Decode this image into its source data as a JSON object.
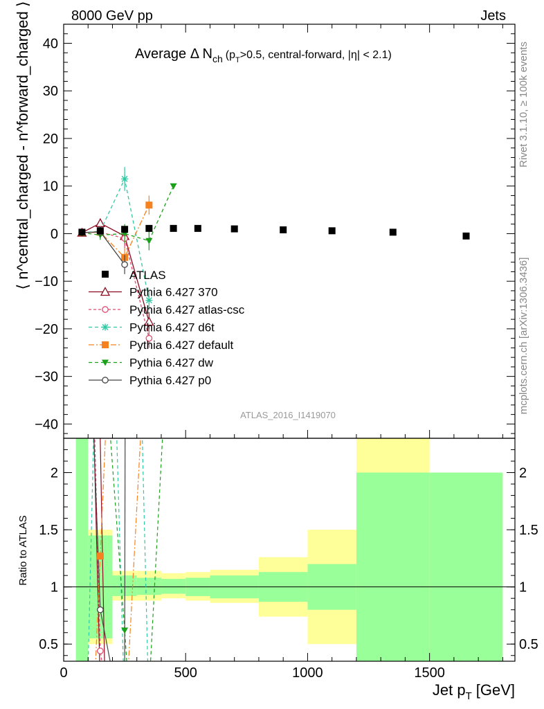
{
  "header": {
    "left": "8000 GeV pp",
    "right": "Jets"
  },
  "side_labels": {
    "rivet": "Rivet 3.1.10, ≥ 100k events",
    "mcplots": "mcplots.cern.ch [arXiv:1306.3436]"
  },
  "chart_data": {
    "type": "scatter",
    "title_main": "Average Δ N",
    "title_sub": "ch",
    "title_cut": "(p",
    "title_cut_sub": "T",
    "title_rest": ">0.5, central-forward, |η| < 2.1)",
    "analysis_id": "ATLAS_2016_I1419070",
    "xlabel": "Jet p",
    "xlabel_sub": "T",
    "xlabel_unit": "[GeV]",
    "ylabel_text": "⟨ n^central_charged - n^forward_charged ⟩",
    "ratio_ylabel": "Ratio to ATLAS",
    "xlim": [
      0,
      1850
    ],
    "ylim": [
      -43,
      44
    ],
    "ratio_ylim": [
      0.35,
      2.3
    ],
    "x_ticks": [
      "0",
      "500",
      "1000",
      "1500"
    ],
    "y_ticks": [
      "40",
      "30",
      "20",
      "10",
      "0",
      "−10",
      "−20",
      "−30",
      "−40"
    ],
    "ratio_ticks": [
      "2",
      "1.5",
      "1",
      "0.5"
    ],
    "legend_position": "center-left",
    "data": {
      "name": "ATLAS",
      "x": [
        75,
        150,
        250,
        350,
        450,
        550,
        700,
        900,
        1100,
        1350,
        1650
      ],
      "y": [
        0.3,
        0.6,
        0.9,
        1.1,
        1.1,
        1.1,
        1.0,
        0.8,
        0.6,
        0.3,
        -0.5
      ],
      "band_edges": [
        50,
        100,
        200,
        300,
        400,
        500,
        600,
        800,
        1000,
        1200,
        1500,
        1800
      ],
      "ratio_green": [
        [
          0.3,
          2.4
        ],
        [
          0.55,
          1.45
        ],
        [
          0.92,
          1.1
        ],
        [
          0.93,
          1.08
        ],
        [
          0.94,
          1.07
        ],
        [
          0.92,
          1.08
        ],
        [
          0.9,
          1.1
        ],
        [
          0.87,
          1.13
        ],
        [
          0.8,
          1.2
        ],
        [
          0.3,
          2.0
        ],
        [
          0.3,
          2.0
        ]
      ],
      "ratio_yellow": [
        [
          0.3,
          2.4
        ],
        [
          0.5,
          1.5
        ],
        [
          0.88,
          1.14
        ],
        [
          0.88,
          1.14
        ],
        [
          0.9,
          1.12
        ],
        [
          0.88,
          1.13
        ],
        [
          0.86,
          1.15
        ],
        [
          0.74,
          1.26
        ],
        [
          0.5,
          1.5
        ],
        [
          0.3,
          2.5
        ],
        [
          0.3,
          2.0
        ]
      ]
    },
    "series": [
      {
        "name": "Pythia 6.427 370",
        "color": "#8b0a1e",
        "dash": "",
        "marker": "triangle-open",
        "x": [
          75,
          150,
          250,
          350
        ],
        "y": [
          0.2,
          2.2,
          -0.5,
          -18.5
        ],
        "err": [
          0.5,
          1.0,
          2.0,
          2.0
        ],
        "ratio_x": [
          110,
          122,
          148,
          178
        ],
        "ratio_y": [
          2.5,
          2.5,
          0.3,
          0.3
        ],
        "ratio_x2": [
          140,
          148,
          168,
          178
        ],
        "ratio_y2": [
          2.5,
          2.5,
          0.3,
          0.3
        ]
      },
      {
        "name": "Pythia 6.427 atlas-csc",
        "color": "#e34a6f",
        "dash": "4,3",
        "marker": "circle-open",
        "x": [
          75,
          150,
          250,
          350
        ],
        "y": [
          0.2,
          0.3,
          -1.0,
          -22.0
        ],
        "err": [
          0.5,
          1.0,
          2.0,
          2.0
        ],
        "ratio_pt": [
          150,
          0.44
        ],
        "ratio_line": [
          [
            125,
            2.5
          ],
          [
            150,
            0.44
          ],
          [
            160,
            0.3
          ]
        ]
      },
      {
        "name": "Pythia 6.427 d6t",
        "color": "#2ec9a1",
        "dash": "5,4",
        "marker": "star",
        "x": [
          75,
          150,
          250,
          350
        ],
        "y": [
          0.2,
          0.5,
          11.5,
          -14.0
        ],
        "err": [
          0.5,
          1.0,
          2.5,
          2.0
        ],
        "ratio_line": [
          [
            100,
            0.3
          ],
          [
            125,
            2.5
          ]
        ],
        "ratio_line2": [
          [
            215,
            2.5
          ],
          [
            245,
            0.3
          ]
        ],
        "ratio_line3": [
          [
            320,
            2.5
          ],
          [
            345,
            0.3
          ]
        ]
      },
      {
        "name": "Pythia 6.427 default",
        "color": "#f5821f",
        "dash": "8,3,2,3",
        "marker": "square",
        "x": [
          75,
          150,
          250,
          350
        ],
        "y": [
          0.2,
          0.3,
          -5.0,
          6.0
        ],
        "err": [
          0.5,
          1.0,
          2.0,
          2.0
        ],
        "ratio_pt": [
          150,
          1.27
        ],
        "ratio_line": [
          [
            130,
            0.3
          ],
          [
            150,
            1.27
          ],
          [
            175,
            2.5
          ]
        ],
        "ratio_line2": [
          [
            265,
            0.3
          ],
          [
            320,
            2.5
          ]
        ]
      },
      {
        "name": "Pythia 6.427 dw",
        "color": "#1aa01a",
        "dash": "5,4",
        "marker": "triangle-down",
        "x": [
          75,
          150,
          250,
          350,
          450
        ],
        "y": [
          0.2,
          -0.3,
          0.0,
          -1.5,
          10.0
        ],
        "err": [
          0.5,
          1.0,
          2.0,
          2.0,
          0.5
        ],
        "ratio_pt": [
          250,
          0.62
        ],
        "ratio_line": [
          [
            185,
            2.5
          ],
          [
            250,
            0.62
          ],
          [
            260,
            0.3
          ]
        ],
        "ratio_line2": [
          [
            355,
            0.3
          ],
          [
            410,
            2.5
          ]
        ]
      },
      {
        "name": "Pythia 6.427 p0",
        "color": "#444444",
        "dash": "",
        "marker": "circle-open",
        "x": [
          75,
          150,
          250
        ],
        "y": [
          0.2,
          0.4,
          -6.5
        ],
        "err": [
          0.5,
          1.0,
          2.0
        ],
        "ratio_pt": [
          150,
          0.8
        ],
        "ratio_line": [
          [
            120,
            2.5
          ],
          [
            150,
            0.8
          ],
          [
            195,
            0.3
          ]
        ],
        "ratio_line2": [
          [
            250,
            0.3
          ],
          [
            252,
            2.5
          ]
        ]
      }
    ]
  }
}
